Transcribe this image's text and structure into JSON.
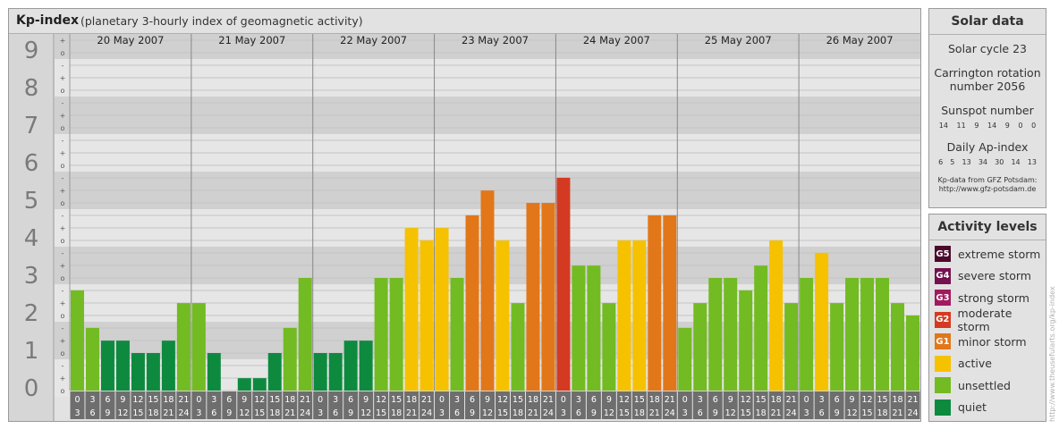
{
  "header": {
    "title": "Kp-index",
    "subtitle": "(planetary 3-hourly index of geomagnetic activity)"
  },
  "chart_data": {
    "type": "bar",
    "y_ticks": [
      "0",
      "1",
      "2",
      "3",
      "4",
      "5",
      "6",
      "7",
      "8",
      "9"
    ],
    "sub_ticks": [
      "o",
      "+",
      "-",
      "o"
    ],
    "ylim": [
      0,
      9
    ],
    "days": [
      "20 May 2007",
      "21 May 2007",
      "22 May 2007",
      "23 May 2007",
      "24 May 2007",
      "25 May 2007",
      "26 May 2007"
    ],
    "interval_labels": [
      [
        "0",
        "3"
      ],
      [
        "3",
        "6"
      ],
      [
        "6",
        "9"
      ],
      [
        "9",
        "12"
      ],
      [
        "12",
        "15"
      ],
      [
        "15",
        "18"
      ],
      [
        "18",
        "21"
      ],
      [
        "21",
        "24"
      ]
    ],
    "values": [
      [
        2.67,
        1.67,
        1.33,
        1.33,
        1.0,
        1.0,
        1.33,
        2.33
      ],
      [
        2.33,
        1.0,
        0.0,
        0.33,
        0.33,
        1.0,
        1.67,
        3.0
      ],
      [
        1.0,
        1.0,
        1.33,
        1.33,
        3.0,
        3.0,
        4.33,
        4.0
      ],
      [
        4.33,
        3.0,
        4.67,
        5.33,
        4.0,
        2.33,
        5.0,
        5.0
      ],
      [
        5.67,
        3.33,
        3.33,
        2.33,
        4.0,
        4.0,
        4.67,
        4.67
      ],
      [
        1.67,
        2.33,
        3.0,
        3.0,
        2.67,
        3.33,
        4.0,
        2.33
      ],
      [
        3.0,
        3.67,
        2.33,
        3.0,
        3.0,
        3.0,
        2.33,
        2.0
      ]
    ],
    "colors": {
      "quiet": "#0e8a3f",
      "unsettled": "#72bb22",
      "active": "#f6c200",
      "G1": "#e27719",
      "G2": "#d43a21",
      "G3": "#a2195e",
      "G4": "#75114e",
      "G5": "#4a0a2a"
    }
  },
  "solar": {
    "title": "Solar data",
    "cycle": "Solar cycle 23",
    "rotation_line1": "Carrington rotation",
    "rotation_line2": "number 2056",
    "sunspot_title": "Sunspot number",
    "sunspot_values": [
      "14",
      "11",
      "9",
      "14",
      "9",
      "0",
      "0"
    ],
    "ap_title": "Daily Ap-index",
    "ap_values": [
      "6",
      "5",
      "13",
      "34",
      "30",
      "14",
      "13"
    ],
    "source_line1": "Kp-data from GFZ Potsdam:",
    "source_line2": "http://www.gfz-potsdam.de"
  },
  "levels": {
    "title": "Activity levels",
    "items": [
      {
        "code": "G5",
        "label": "extreme storm",
        "color": "#4a0a2a"
      },
      {
        "code": "G4",
        "label": "severe storm",
        "color": "#75114e"
      },
      {
        "code": "G3",
        "label": "strong storm",
        "color": "#a2195e"
      },
      {
        "code": "G2",
        "label": "moderate storm",
        "color": "#d43a21"
      },
      {
        "code": "G1",
        "label": "minor storm",
        "color": "#e27719"
      },
      {
        "code": "",
        "label": "active",
        "color": "#f6c200"
      },
      {
        "code": "",
        "label": "unsettled",
        "color": "#72bb22"
      },
      {
        "code": "",
        "label": "quiet",
        "color": "#0e8a3f"
      }
    ]
  },
  "watermark": "http://www.theusefularts.org/kp-index"
}
